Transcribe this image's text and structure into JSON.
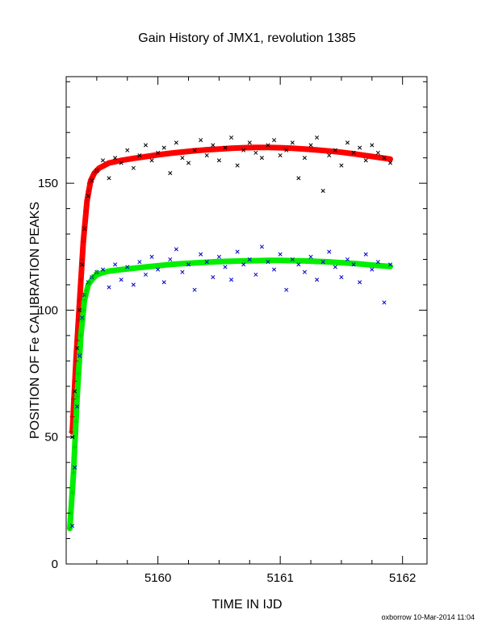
{
  "chart_data": {
    "type": "scatter",
    "title": "Gain History of JMX1, revolution 1385",
    "xlabel": "TIME IN IJD",
    "ylabel": "POSITION OF Fe CALIBRATION PEAKS",
    "xlim": [
      5159.25,
      5162.2
    ],
    "ylim": [
      0,
      192
    ],
    "x_ticks": [
      5160,
      5161,
      5162
    ],
    "x_tick_labels": [
      "5160",
      "5161",
      "5162"
    ],
    "y_ticks": [
      0,
      50,
      100,
      150
    ],
    "y_tick_labels": [
      "0",
      "50",
      "100",
      "150"
    ],
    "grid": false,
    "legend": "none",
    "footer": "oxborrow 10-Mar-2014 11:04",
    "series": [
      {
        "marker": "x",
        "color": "#000000",
        "x": [
          5159.3,
          5159.32,
          5159.34,
          5159.36,
          5159.38,
          5159.4,
          5159.43,
          5159.46,
          5159.5,
          5159.55,
          5159.6,
          5159.65,
          5159.7,
          5159.75,
          5159.8,
          5159.85,
          5159.9,
          5159.95,
          5160.0,
          5160.05,
          5160.1,
          5160.15,
          5160.2,
          5160.25,
          5160.3,
          5160.35,
          5160.4,
          5160.45,
          5160.5,
          5160.55,
          5160.6,
          5160.65,
          5160.7,
          5160.75,
          5160.8,
          5160.85,
          5160.9,
          5160.95,
          5161.0,
          5161.05,
          5161.1,
          5161.15,
          5161.2,
          5161.25,
          5161.3,
          5161.35,
          5161.4,
          5161.45,
          5161.5,
          5161.55,
          5161.6,
          5161.65,
          5161.7,
          5161.75,
          5161.8,
          5161.85,
          5161.9
        ],
        "y": [
          50,
          68,
          85,
          100,
          118,
          132,
          145,
          151,
          155,
          159,
          152,
          160,
          158,
          163,
          156,
          161,
          165,
          159,
          162,
          164,
          154,
          166,
          160,
          158,
          163,
          167,
          161,
          165,
          159,
          164,
          168,
          157,
          163,
          166,
          162,
          160,
          165,
          167,
          161,
          163,
          166,
          152,
          160,
          165,
          168,
          147,
          161,
          163,
          157,
          166,
          162,
          164,
          159,
          165,
          162,
          160,
          158
        ]
      },
      {
        "marker": "x",
        "color": "#0000cc",
        "x": [
          5159.3,
          5159.32,
          5159.34,
          5159.36,
          5159.38,
          5159.4,
          5159.43,
          5159.46,
          5159.5,
          5159.55,
          5159.6,
          5159.65,
          5159.7,
          5159.75,
          5159.8,
          5159.85,
          5159.9,
          5159.95,
          5160.0,
          5160.05,
          5160.1,
          5160.15,
          5160.2,
          5160.25,
          5160.3,
          5160.35,
          5160.4,
          5160.45,
          5160.5,
          5160.55,
          5160.6,
          5160.65,
          5160.7,
          5160.75,
          5160.8,
          5160.85,
          5160.9,
          5160.95,
          5161.0,
          5161.05,
          5161.1,
          5161.15,
          5161.2,
          5161.25,
          5161.3,
          5161.35,
          5161.4,
          5161.45,
          5161.5,
          5161.55,
          5161.6,
          5161.65,
          5161.7,
          5161.75,
          5161.8,
          5161.85,
          5161.9
        ],
        "y": [
          15,
          38,
          62,
          82,
          97,
          106,
          111,
          113,
          115,
          116,
          109,
          118,
          112,
          117,
          110,
          119,
          114,
          121,
          116,
          111,
          120,
          124,
          115,
          118,
          108,
          122,
          119,
          113,
          121,
          117,
          112,
          123,
          118,
          120,
          114,
          125,
          119,
          116,
          122,
          108,
          120,
          118,
          115,
          121,
          112,
          119,
          123,
          117,
          113,
          120,
          118,
          111,
          122,
          116,
          119,
          103,
          118
        ]
      },
      {
        "marker": "+",
        "color": "#cc0000",
        "x": [
          5159.29,
          5159.3,
          5159.31,
          5159.32,
          5159.33,
          5159.34,
          5159.35,
          5159.36,
          5159.37,
          5159.38,
          5159.39,
          5159.4,
          5159.41,
          5159.42,
          5159.43,
          5159.44,
          5159.46,
          5159.48,
          5159.5
        ],
        "y": [
          52,
          58,
          65,
          72,
          80,
          88,
          96,
          104,
          112,
          120,
          127,
          133,
          139,
          143,
          147,
          150,
          152,
          154,
          155
        ]
      },
      {
        "marker": "+",
        "color": "#00cc00",
        "x": [
          5159.28,
          5159.29,
          5159.3,
          5159.31,
          5159.32,
          5159.33,
          5159.34,
          5159.35,
          5159.36,
          5159.37,
          5159.38,
          5159.39,
          5159.4,
          5159.41,
          5159.42,
          5159.43,
          5159.44,
          5159.46,
          5159.48,
          5159.5
        ],
        "y": [
          14,
          20,
          28,
          36,
          46,
          56,
          66,
          75,
          83,
          90,
          96,
          100,
          104,
          106,
          108,
          110,
          111,
          113,
          114,
          115
        ]
      },
      {
        "marker": "line",
        "color": "#ff0000",
        "x": [
          5159.3,
          5159.33,
          5159.36,
          5159.39,
          5159.42,
          5159.45,
          5159.48,
          5159.52,
          5159.6,
          5159.7,
          5159.8,
          5159.9,
          5160.0,
          5160.1,
          5160.2,
          5160.3,
          5160.4,
          5160.5,
          5160.6,
          5160.7,
          5160.8,
          5160.9,
          5161.0,
          5161.1,
          5161.2,
          5161.3,
          5161.4,
          5161.5,
          5161.6,
          5161.7,
          5161.8,
          5161.9
        ],
        "y": [
          52,
          80,
          104,
          127,
          143,
          151,
          154,
          156,
          158,
          159,
          159.8,
          160.5,
          161.2,
          161.8,
          162.3,
          162.8,
          163.2,
          163.5,
          163.8,
          164,
          164.1,
          164.1,
          164,
          163.8,
          163.5,
          163.1,
          162.7,
          162.2,
          161.6,
          160.9,
          160.2,
          159.5
        ]
      },
      {
        "marker": "line",
        "color": "#00ee00",
        "x": [
          5159.28,
          5159.31,
          5159.34,
          5159.37,
          5159.4,
          5159.43,
          5159.46,
          5159.5,
          5159.55,
          5159.6,
          5159.7,
          5159.8,
          5159.9,
          5160.0,
          5160.1,
          5160.2,
          5160.3,
          5160.4,
          5160.5,
          5160.6,
          5160.7,
          5160.8,
          5160.9,
          5161.0,
          5161.1,
          5161.2,
          5161.3,
          5161.4,
          5161.5,
          5161.6,
          5161.7,
          5161.8,
          5161.9
        ],
        "y": [
          14,
          36,
          66,
          90,
          104,
          110,
          112,
          114,
          114.8,
          115.4,
          116,
          116.5,
          117,
          117.5,
          118,
          118.3,
          118.6,
          118.9,
          119.1,
          119.3,
          119.4,
          119.5,
          119.6,
          119.6,
          119.5,
          119.4,
          119.2,
          119,
          118.7,
          118.4,
          118,
          117.6,
          117.2
        ]
      }
    ]
  }
}
